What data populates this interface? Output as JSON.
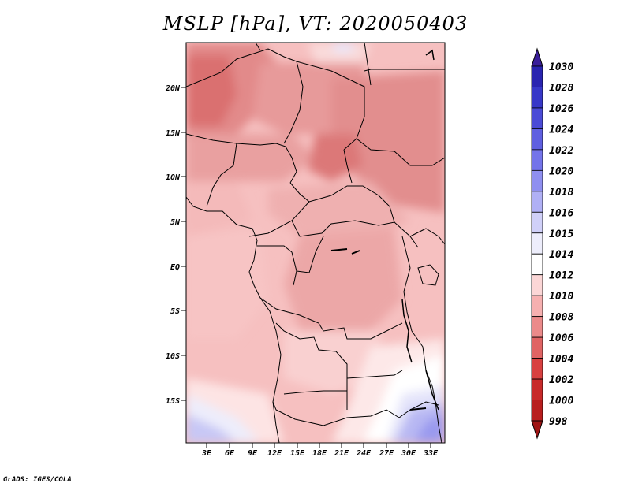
{
  "title": "MSLP [hPa], VT: 2020050403",
  "credit": "GrADS: IGES/COLA",
  "map": {
    "lat_labels": [
      "20N",
      "15N",
      "10N",
      "5N",
      "EQ",
      "5S",
      "10S",
      "15S"
    ],
    "lon_labels": [
      "3E",
      "6E",
      "9E",
      "12E",
      "15E",
      "18E",
      "21E",
      "24E",
      "27E",
      "30E",
      "33E"
    ]
  },
  "colorbar": {
    "levels": [
      "1030",
      "1028",
      "1026",
      "1024",
      "1022",
      "1020",
      "1018",
      "1016",
      "1015",
      "1014",
      "1012",
      "1010",
      "1008",
      "1006",
      "1004",
      "1002",
      "1000",
      "998"
    ],
    "colors": [
      "#3a1e9a",
      "#2a24b0",
      "#3838c8",
      "#4b4bd6",
      "#5f5fe0",
      "#7474ea",
      "#8f8ff0",
      "#b0b0f5",
      "#d0d0f8",
      "#ededfb",
      "#ffffff",
      "#fbd6d6",
      "#f6b0b0",
      "#eb8a8a",
      "#e06464",
      "#d84040",
      "#c82a2a",
      "#b81e1e",
      "#a01414"
    ]
  }
}
